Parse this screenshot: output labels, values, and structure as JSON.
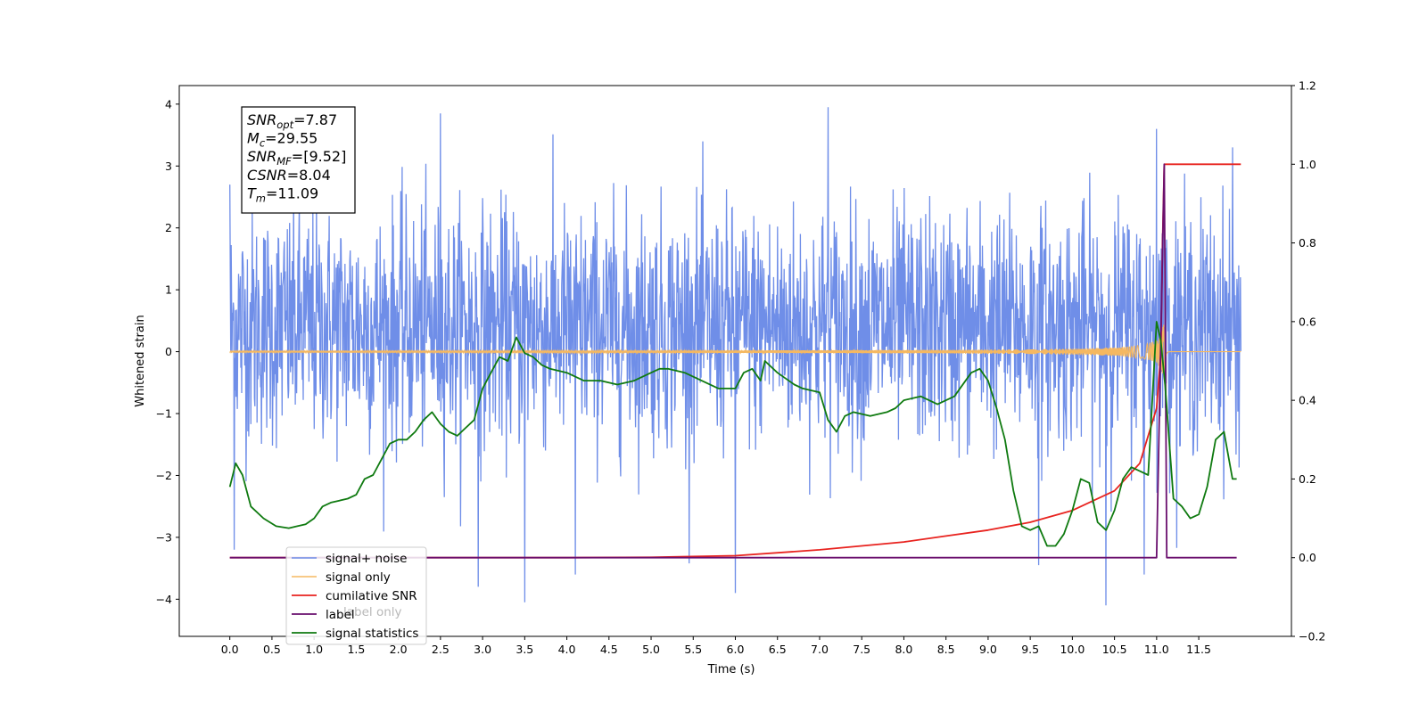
{
  "chart_data": {
    "type": "line",
    "xlabel": "Time (s)",
    "ylabel": "Whitened strain",
    "xlim": [
      -0.6,
      12.6
    ],
    "ylim": [
      -4.6,
      4.3
    ],
    "y2lim": [
      -0.2,
      1.2
    ],
    "x_ticks": [
      "0.0",
      "0.5",
      "1.0",
      "1.5",
      "2.0",
      "2.5",
      "3.0",
      "3.5",
      "4.0",
      "4.5",
      "5.0",
      "5.5",
      "6.0",
      "6.5",
      "7.0",
      "7.5",
      "8.0",
      "8.5",
      "9.0",
      "9.5",
      "10.0",
      "10.5",
      "11.0",
      "11.5"
    ],
    "y_ticks": [
      "4",
      "3",
      "2",
      "1",
      "0",
      "−1",
      "−2",
      "−3",
      "−4"
    ],
    "y2_ticks": [
      "1.2",
      "1.0",
      "0.8",
      "0.6",
      "0.4",
      "0.2",
      "0.0",
      "−0.2"
    ],
    "annotation": [
      {
        "base": "SNR",
        "sub": "opt",
        "value": "=7.87"
      },
      {
        "base": "M",
        "sub": "c",
        "value": "=29.55"
      },
      {
        "base": "SNR",
        "sub": "MF",
        "value": "=[9.52]"
      },
      {
        "base": "CSNR",
        "sub": "",
        "value": "=8.04"
      },
      {
        "base": "T",
        "sub": "m",
        "value": "=11.09"
      }
    ],
    "legend": {
      "position": "lower-left",
      "entries": [
        "signal+ noise",
        "signal only",
        "cumilative SNR",
        "label",
        "signal statistics"
      ]
    },
    "hidden_label_text": "label only",
    "series": [
      {
        "name": "signal+ noise",
        "axis": "left",
        "color": "#6f8ee8",
        "x_start": 0.0,
        "x_end": 12.0,
        "mean": 0.4,
        "std": 0.95,
        "extremes": [
          [
            0.0,
            2.7
          ],
          [
            0.05,
            -3.2
          ],
          [
            2.5,
            3.85
          ],
          [
            2.95,
            -3.8
          ],
          [
            3.5,
            -4.05
          ],
          [
            4.1,
            -3.6
          ],
          [
            6.0,
            -3.9
          ],
          [
            7.1,
            3.95
          ],
          [
            9.6,
            -3.45
          ],
          [
            10.4,
            -4.1
          ],
          [
            10.85,
            -3.6
          ],
          [
            11.0,
            3.6
          ],
          [
            11.9,
            3.3
          ]
        ]
      },
      {
        "name": "signal only",
        "axis": "left",
        "color": "#f5b861",
        "x_start": 0.0,
        "x_end": 12.0,
        "merger_time": 11.09,
        "amplitude_at_merger": 0.55
      },
      {
        "name": "cumilative SNR",
        "axis": "right",
        "color": "#e8231f",
        "x": [
          0.0,
          2.0,
          4.0,
          5.0,
          6.0,
          7.0,
          8.0,
          8.5,
          9.0,
          9.5,
          10.0,
          10.5,
          10.8,
          11.0,
          11.05,
          11.07,
          11.09,
          12.0
        ],
        "y": [
          0.0,
          0.0,
          0.0,
          0.001,
          0.005,
          0.02,
          0.04,
          0.055,
          0.07,
          0.09,
          0.12,
          0.17,
          0.24,
          0.38,
          0.52,
          0.8,
          1.0,
          1.0
        ]
      },
      {
        "name": "label",
        "axis": "right",
        "color": "#6a0f6e",
        "x": [
          0.0,
          11.0,
          11.09,
          11.12,
          11.95
        ],
        "y": [
          0.0,
          0.0,
          1.0,
          0.0,
          0.0
        ]
      },
      {
        "name": "signal statistics",
        "axis": "right",
        "color": "#0f7a10",
        "x": [
          0.0,
          0.07,
          0.15,
          0.25,
          0.4,
          0.55,
          0.7,
          0.8,
          0.9,
          1.0,
          1.1,
          1.2,
          1.3,
          1.4,
          1.5,
          1.6,
          1.7,
          1.8,
          1.9,
          2.0,
          2.1,
          2.2,
          2.3,
          2.4,
          2.5,
          2.6,
          2.7,
          2.8,
          2.9,
          3.0,
          3.1,
          3.2,
          3.3,
          3.4,
          3.5,
          3.6,
          3.7,
          3.8,
          4.0,
          4.2,
          4.4,
          4.6,
          4.8,
          5.0,
          5.1,
          5.2,
          5.4,
          5.6,
          5.8,
          6.0,
          6.1,
          6.2,
          6.3,
          6.35,
          6.5,
          6.7,
          6.8,
          7.0,
          7.1,
          7.2,
          7.3,
          7.4,
          7.6,
          7.8,
          7.9,
          8.0,
          8.2,
          8.4,
          8.6,
          8.8,
          8.9,
          9.0,
          9.1,
          9.2,
          9.3,
          9.4,
          9.5,
          9.6,
          9.7,
          9.8,
          9.9,
          10.0,
          10.1,
          10.2,
          10.3,
          10.4,
          10.5,
          10.6,
          10.7,
          10.8,
          10.9,
          11.0,
          11.05,
          11.1,
          11.2,
          11.3,
          11.4,
          11.5,
          11.6,
          11.7,
          11.8,
          11.9,
          11.95
        ],
        "y": [
          0.18,
          0.24,
          0.21,
          0.13,
          0.1,
          0.08,
          0.075,
          0.08,
          0.085,
          0.1,
          0.13,
          0.14,
          0.145,
          0.15,
          0.16,
          0.2,
          0.21,
          0.25,
          0.29,
          0.3,
          0.3,
          0.32,
          0.35,
          0.37,
          0.34,
          0.32,
          0.31,
          0.33,
          0.35,
          0.43,
          0.47,
          0.51,
          0.5,
          0.56,
          0.52,
          0.51,
          0.49,
          0.48,
          0.47,
          0.45,
          0.45,
          0.44,
          0.45,
          0.47,
          0.48,
          0.48,
          0.47,
          0.45,
          0.43,
          0.43,
          0.47,
          0.48,
          0.45,
          0.5,
          0.47,
          0.44,
          0.43,
          0.42,
          0.35,
          0.32,
          0.36,
          0.37,
          0.36,
          0.37,
          0.38,
          0.4,
          0.41,
          0.39,
          0.41,
          0.47,
          0.48,
          0.45,
          0.38,
          0.3,
          0.17,
          0.08,
          0.07,
          0.08,
          0.03,
          0.03,
          0.06,
          0.12,
          0.2,
          0.19,
          0.09,
          0.07,
          0.12,
          0.2,
          0.23,
          0.22,
          0.21,
          0.6,
          0.55,
          0.44,
          0.15,
          0.13,
          0.1,
          0.11,
          0.18,
          0.3,
          0.32,
          0.2,
          0.2
        ]
      }
    ]
  }
}
